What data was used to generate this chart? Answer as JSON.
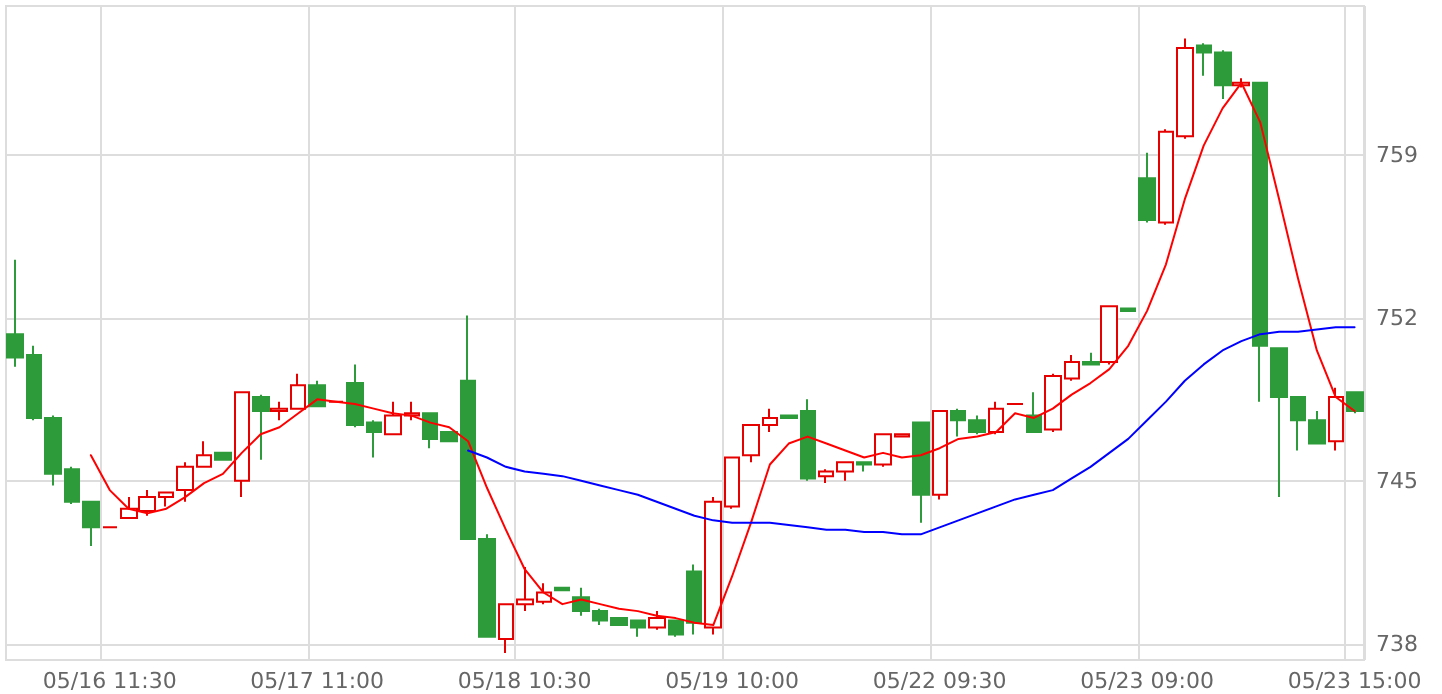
{
  "chart_data": {
    "type": "candlestick",
    "categories": [
      null,
      null,
      null,
      null,
      null,
      "05/16 11:30",
      null,
      null,
      null,
      null,
      null,
      null,
      null,
      null,
      null,
      null,
      "05/17 11:00",
      null,
      null,
      null,
      null,
      null,
      null,
      null,
      null,
      null,
      null,
      "05/18 10:30",
      null,
      null,
      null,
      null,
      null,
      null,
      null,
      null,
      null,
      null,
      "05/19 10:00",
      null,
      null,
      null,
      null,
      null,
      null,
      null,
      null,
      null,
      null,
      "05/22 09:30",
      null,
      null,
      null,
      null,
      null,
      null,
      null,
      null,
      null,
      null,
      "05/23 09:00",
      null,
      null,
      null,
      null,
      null,
      null,
      null,
      null,
      null,
      null,
      "05/23 15:00"
    ],
    "ohlc": [
      [
        751.3,
        754.5,
        749.9,
        750.3
      ],
      [
        750.4,
        750.8,
        747.6,
        747.7
      ],
      [
        747.7,
        747.8,
        744.8,
        745.3
      ],
      [
        745.5,
        745.6,
        744.0,
        744.1
      ],
      [
        744.1,
        744.1,
        742.2,
        743.0
      ],
      [
        743.0,
        743.0,
        743.0,
        743.0
      ],
      [
        743.4,
        744.3,
        743.4,
        743.8
      ],
      [
        743.7,
        744.6,
        743.5,
        744.3
      ],
      [
        744.3,
        744.5,
        743.9,
        744.5
      ],
      [
        744.6,
        745.8,
        744.1,
        745.6
      ],
      [
        745.6,
        746.7,
        745.6,
        746.1
      ],
      [
        746.2,
        746.2,
        745.9,
        745.9
      ],
      [
        745.0,
        748.8,
        744.3,
        748.8
      ],
      [
        748.6,
        748.7,
        745.9,
        748.0
      ],
      [
        748.0,
        748.4,
        747.6,
        748.1
      ],
      [
        748.1,
        749.6,
        748.1,
        749.1
      ],
      [
        749.1,
        749.3,
        748.2,
        748.2
      ],
      [
        748.4,
        748.4,
        748.4,
        748.4
      ],
      [
        749.2,
        750.0,
        747.3,
        747.4
      ],
      [
        747.5,
        747.6,
        746.0,
        747.1
      ],
      [
        747.0,
        748.4,
        747.0,
        747.8
      ],
      [
        747.8,
        748.4,
        747.6,
        747.9
      ],
      [
        747.9,
        747.9,
        746.4,
        746.8
      ],
      [
        747.1,
        747.1,
        746.7,
        746.7
      ],
      [
        749.3,
        752.1,
        742.5,
        742.5
      ],
      [
        742.5,
        742.7,
        738.3,
        738.3
      ],
      [
        738.2,
        739.7,
        737.6,
        739.7
      ],
      [
        739.7,
        741.3,
        739.4,
        739.9
      ],
      [
        739.8,
        740.6,
        739.7,
        740.2
      ],
      [
        740.4,
        740.4,
        740.3,
        740.3
      ],
      [
        740.0,
        740.4,
        739.2,
        739.4
      ],
      [
        739.4,
        739.5,
        738.8,
        739.0
      ],
      [
        739.1,
        739.1,
        738.8,
        738.8
      ],
      [
        739.0,
        739.0,
        738.3,
        738.7
      ],
      [
        738.7,
        739.4,
        738.6,
        739.1
      ],
      [
        739.0,
        739.0,
        738.3,
        738.4
      ],
      [
        741.1,
        741.4,
        738.4,
        738.9
      ],
      [
        738.7,
        744.3,
        738.4,
        744.1
      ],
      [
        743.9,
        746.0,
        743.8,
        746.0
      ],
      [
        746.1,
        747.4,
        745.8,
        747.4
      ],
      [
        747.4,
        748.1,
        747.1,
        747.7
      ],
      [
        747.8,
        747.8,
        747.7,
        747.7
      ],
      [
        748.0,
        748.5,
        745.0,
        745.1
      ],
      [
        745.2,
        745.5,
        744.9,
        745.4
      ],
      [
        745.4,
        745.8,
        745.0,
        745.8
      ],
      [
        745.8,
        745.8,
        745.4,
        745.7
      ],
      [
        745.7,
        747.0,
        745.6,
        747.0
      ],
      [
        746.9,
        747.0,
        746.9,
        747.0
      ],
      [
        747.5,
        747.5,
        743.2,
        744.4
      ],
      [
        744.4,
        748.0,
        744.2,
        748.0
      ],
      [
        748.0,
        748.1,
        746.9,
        747.6
      ],
      [
        747.6,
        747.8,
        747.0,
        747.1
      ],
      [
        747.1,
        748.4,
        747.0,
        748.1
      ],
      [
        748.3,
        748.3,
        748.3,
        748.3
      ],
      [
        747.8,
        748.8,
        747.1,
        747.1
      ],
      [
        747.2,
        749.6,
        747.1,
        749.5
      ],
      [
        749.4,
        750.4,
        749.3,
        750.1
      ],
      [
        750.1,
        750.5,
        750.0,
        750.0
      ],
      [
        750.1,
        752.5,
        750.0,
        752.5
      ],
      [
        752.4,
        752.4,
        752.3,
        752.3
      ],
      [
        758.0,
        759.1,
        756.1,
        756.2
      ],
      [
        756.1,
        760.1,
        756.0,
        760.0
      ],
      [
        759.8,
        764.0,
        759.7,
        763.6
      ],
      [
        763.7,
        763.8,
        762.4,
        763.4
      ],
      [
        763.4,
        763.5,
        761.4,
        762.0
      ],
      [
        762.0,
        762.3,
        761.9,
        762.1
      ],
      [
        762.1,
        762.1,
        748.4,
        750.8
      ],
      [
        750.7,
        750.7,
        744.3,
        748.6
      ],
      [
        748.6,
        748.6,
        746.3,
        747.6
      ],
      [
        747.6,
        748.0,
        746.6,
        746.6
      ],
      [
        746.7,
        749.0,
        746.3,
        748.6
      ],
      [
        748.8,
        748.8,
        747.9,
        748.0
      ]
    ],
    "colors": [
      "#2e9b3a",
      "#2e9b3a",
      "#2e9b3a",
      "#2e9b3a",
      "#2e9b3a",
      "#e60000",
      "#e60000",
      "#e60000",
      "#e60000",
      "#e60000",
      "#e60000",
      "#2e9b3a",
      "#e60000",
      "#2e9b3a",
      "#e60000",
      "#e60000",
      "#2e9b3a",
      "#e60000",
      "#2e9b3a",
      "#2e9b3a",
      "#e60000",
      "#e60000",
      "#2e9b3a",
      "#2e9b3a",
      "#2e9b3a",
      "#2e9b3a",
      "#e60000",
      "#e60000",
      "#e60000",
      "#2e9b3a",
      "#2e9b3a",
      "#2e9b3a",
      "#2e9b3a",
      "#2e9b3a",
      "#e60000",
      "#2e9b3a",
      "#2e9b3a",
      "#e60000",
      "#e60000",
      "#e60000",
      "#e60000",
      "#2e9b3a",
      "#2e9b3a",
      "#e60000",
      "#e60000",
      "#2e9b3a",
      "#e60000",
      "#e60000",
      "#2e9b3a",
      "#e60000",
      "#2e9b3a",
      "#2e9b3a",
      "#e60000",
      "#e60000",
      "#2e9b3a",
      "#e60000",
      "#e60000",
      "#2e9b3a",
      "#e60000",
      "#2e9b3a",
      "#2e9b3a",
      "#e60000",
      "#e60000",
      "#2e9b3a",
      "#2e9b3a",
      "#e60000",
      "#2e9b3a",
      "#2e9b3a",
      "#2e9b3a",
      "#2e9b3a",
      "#e60000",
      "#2e9b3a"
    ],
    "series": [
      {
        "type": "line",
        "color": "#ff0000",
        "values": [
          null,
          null,
          null,
          null,
          746.1,
          744.6,
          743.8,
          743.6,
          743.8,
          744.3,
          744.9,
          745.3,
          746.2,
          747.0,
          747.3,
          747.9,
          748.5,
          748.4,
          748.3,
          748.1,
          747.9,
          747.8,
          747.5,
          747.3,
          746.7,
          744.7,
          742.9,
          741.2,
          740.2,
          739.7,
          739.9,
          739.7,
          739.5,
          739.4,
          739.2,
          739.1,
          738.9,
          738.8,
          740.9,
          743.2,
          745.7,
          746.6,
          746.9,
          746.6,
          746.3,
          746.0,
          746.2,
          746.0,
          746.1,
          746.4,
          746.8,
          746.9,
          747.1,
          747.9,
          747.7,
          748.1,
          748.7,
          749.2,
          749.8,
          750.8,
          752.3,
          754.3,
          757.1,
          759.4,
          761.0,
          762.1,
          760.4,
          757.1,
          753.7,
          750.6,
          748.6,
          748.0
        ]
      },
      {
        "type": "line",
        "color": "#0000ff",
        "values": [
          null,
          null,
          null,
          null,
          null,
          null,
          null,
          null,
          null,
          null,
          null,
          null,
          null,
          null,
          null,
          null,
          null,
          null,
          null,
          null,
          null,
          null,
          null,
          null,
          746.3,
          746.0,
          745.6,
          745.4,
          745.3,
          745.2,
          745.0,
          744.8,
          744.6,
          744.4,
          744.1,
          743.8,
          743.5,
          743.3,
          743.2,
          743.2,
          743.2,
          743.1,
          743.0,
          742.9,
          742.9,
          742.8,
          742.8,
          742.7,
          742.7,
          743.0,
          743.3,
          743.6,
          743.9,
          744.2,
          744.4,
          744.6,
          745.1,
          745.6,
          746.2,
          746.8,
          747.6,
          748.4,
          749.3,
          750.0,
          750.6,
          751.0,
          751.3,
          751.4,
          751.4,
          751.5,
          751.6,
          751.6
        ]
      }
    ],
    "ylim": [
      737.3,
      765.4
    ],
    "yticks": [
      738,
      745,
      752,
      759
    ],
    "grid": true,
    "marker": "none",
    "line_style": "solid"
  }
}
